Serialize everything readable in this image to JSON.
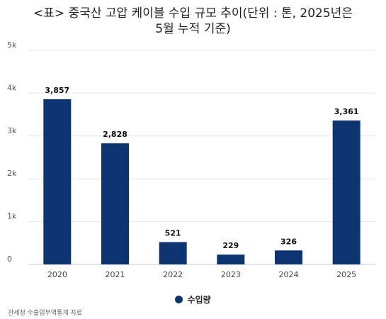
{
  "chart_data": {
    "type": "bar",
    "title_lines": [
      "<표> 중국산 고압 케이블 수입 규모 추이(단위 : 톤, 2025년은",
      "5월 누적 기준)"
    ],
    "categories": [
      "2020",
      "2021",
      "2022",
      "2023",
      "2024",
      "2025"
    ],
    "series": [
      {
        "name": "수입량",
        "values": [
          3857,
          2828,
          521,
          229,
          326,
          3361
        ]
      }
    ],
    "data_labels": [
      "3,857",
      "2,828",
      "521",
      "229",
      "326",
      "3,361"
    ],
    "y_ticks": [
      0,
      1000,
      2000,
      3000,
      4000,
      5000
    ],
    "y_tick_labels": [
      "0",
      "1k",
      "2k",
      "3k",
      "4k",
      "5k"
    ],
    "ylim": [
      0,
      5000
    ],
    "grid": true,
    "legend_position": "bottom-center",
    "bar_color": "#0b3470"
  },
  "source": "관세청 수출입무역통계 자료"
}
